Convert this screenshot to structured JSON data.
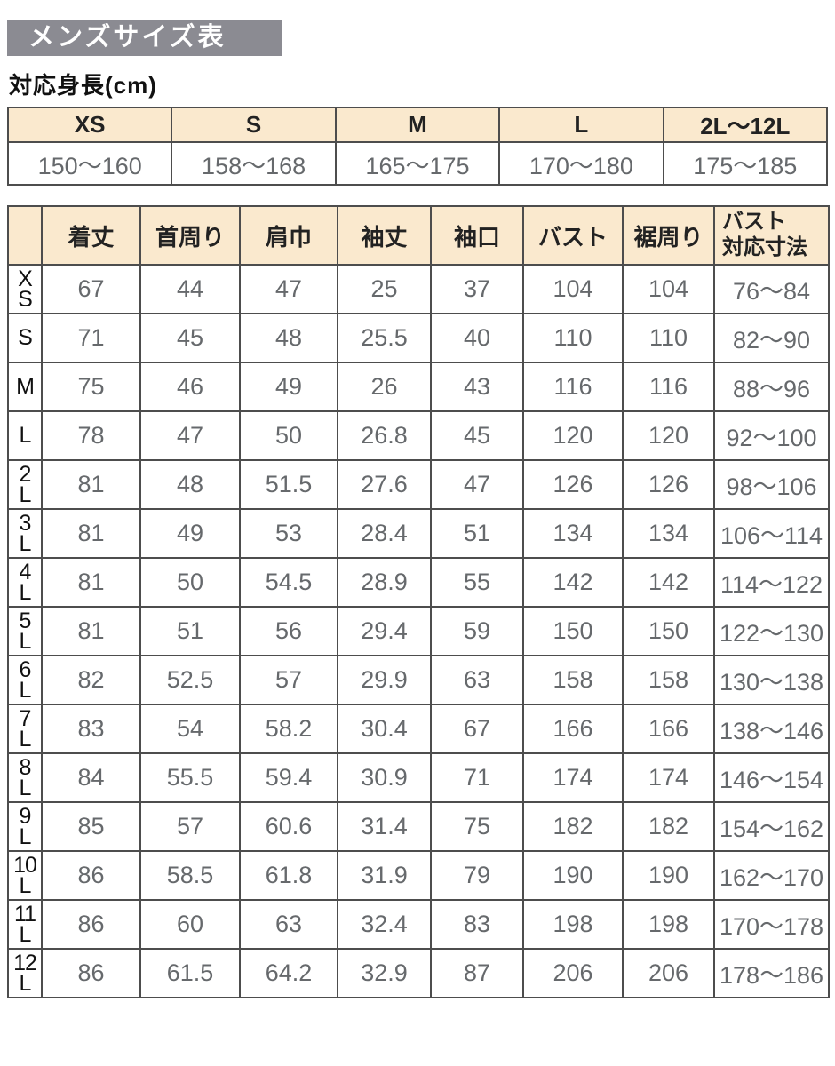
{
  "page": {
    "title": "メンズサイズ表",
    "height_section_label": "対応身長(cm)"
  },
  "height_table": {
    "columns": [
      "XS",
      "S",
      "M",
      "L",
      "2L～12L"
    ],
    "values": [
      "150～160",
      "158～168",
      "165～175",
      "170～180",
      "175～185"
    ]
  },
  "size_table": {
    "corner_label": "",
    "columns": [
      "着丈",
      "首周り",
      "肩巾",
      "袖丈",
      "袖口",
      "バスト",
      "裾周り",
      "バスト\n対応寸法"
    ],
    "rows": [
      {
        "size": "XS",
        "label": "X\nS",
        "values": [
          "67",
          "44",
          "47",
          "25",
          "37",
          "104",
          "104",
          "76～84"
        ]
      },
      {
        "size": "S",
        "label": "S",
        "values": [
          "71",
          "45",
          "48",
          "25.5",
          "40",
          "110",
          "110",
          "82～90"
        ]
      },
      {
        "size": "M",
        "label": "M",
        "values": [
          "75",
          "46",
          "49",
          "26",
          "43",
          "116",
          "116",
          "88～96"
        ]
      },
      {
        "size": "L",
        "label": "L",
        "values": [
          "78",
          "47",
          "50",
          "26.8",
          "45",
          "120",
          "120",
          "92～100"
        ]
      },
      {
        "size": "2L",
        "label": "2\nL",
        "values": [
          "81",
          "48",
          "51.5",
          "27.6",
          "47",
          "126",
          "126",
          "98～106"
        ]
      },
      {
        "size": "3L",
        "label": "3\nL",
        "values": [
          "81",
          "49",
          "53",
          "28.4",
          "51",
          "134",
          "134",
          "106～114"
        ]
      },
      {
        "size": "4L",
        "label": "4\nL",
        "values": [
          "81",
          "50",
          "54.5",
          "28.9",
          "55",
          "142",
          "142",
          "114～122"
        ]
      },
      {
        "size": "5L",
        "label": "5\nL",
        "values": [
          "81",
          "51",
          "56",
          "29.4",
          "59",
          "150",
          "150",
          "122～130"
        ]
      },
      {
        "size": "6L",
        "label": "6\nL",
        "values": [
          "82",
          "52.5",
          "57",
          "29.9",
          "63",
          "158",
          "158",
          "130～138"
        ]
      },
      {
        "size": "7L",
        "label": "7\nL",
        "values": [
          "83",
          "54",
          "58.2",
          "30.4",
          "67",
          "166",
          "166",
          "138～146"
        ]
      },
      {
        "size": "8L",
        "label": "8\nL",
        "values": [
          "84",
          "55.5",
          "59.4",
          "30.9",
          "71",
          "174",
          "174",
          "146～154"
        ]
      },
      {
        "size": "9L",
        "label": "9\nL",
        "values": [
          "85",
          "57",
          "60.6",
          "31.4",
          "75",
          "182",
          "182",
          "154～162"
        ]
      },
      {
        "size": "10L",
        "label": "10\nL",
        "values": [
          "86",
          "58.5",
          "61.8",
          "31.9",
          "79",
          "190",
          "190",
          "162～170"
        ]
      },
      {
        "size": "11L",
        "label": "11\nL",
        "values": [
          "86",
          "60",
          "63",
          "32.4",
          "83",
          "198",
          "198",
          "170～178"
        ]
      },
      {
        "size": "12L",
        "label": "12\nL",
        "values": [
          "86",
          "61.5",
          "64.2",
          "32.9",
          "87",
          "206",
          "206",
          "178～186"
        ]
      }
    ]
  },
  "colors": {
    "banner_bg": "#8b8b92",
    "banner_text": "#ffffff",
    "header_bg": "#fae9ce",
    "border": "#4d4d4d",
    "value_text": "#66696c",
    "label_text": "#111111"
  }
}
